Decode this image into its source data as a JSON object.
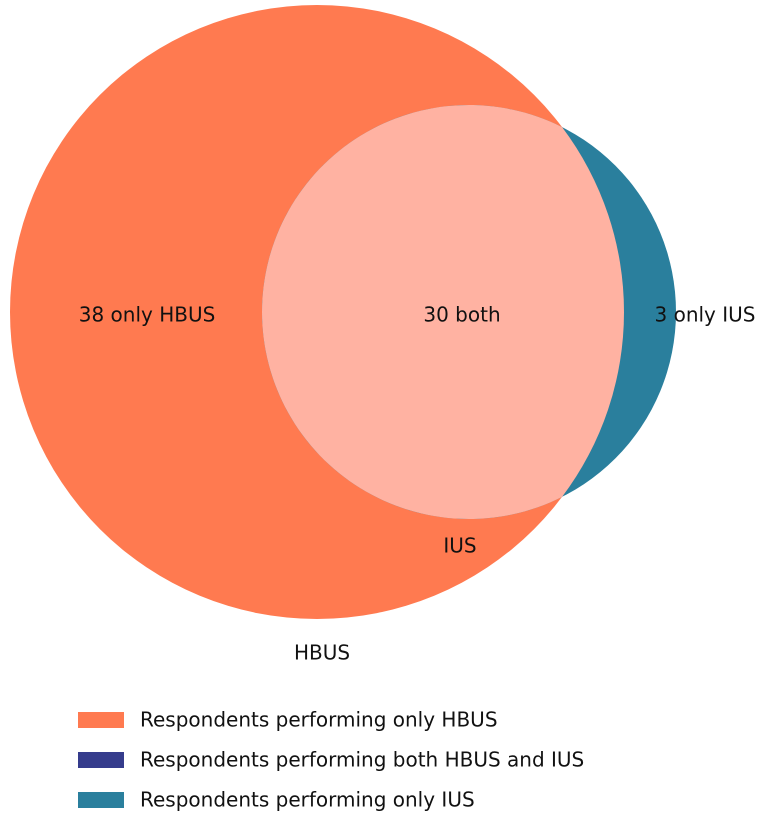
{
  "chart_data": {
    "type": "venn",
    "sets": [
      "HBUS",
      "IUS"
    ],
    "categories": [
      "Respondents performing only HBUS",
      "Respondents performing both HBUS and IUS",
      "Respondents performing only IUS"
    ],
    "values": [
      38,
      30,
      3
    ],
    "value_labels": [
      "38 only HBUS",
      "30 both",
      "3 only IUS"
    ],
    "colors": [
      "#ff7a50",
      "#353c8c",
      "#2a7f9d"
    ],
    "overlap_color": "#ffb2a2"
  }
}
